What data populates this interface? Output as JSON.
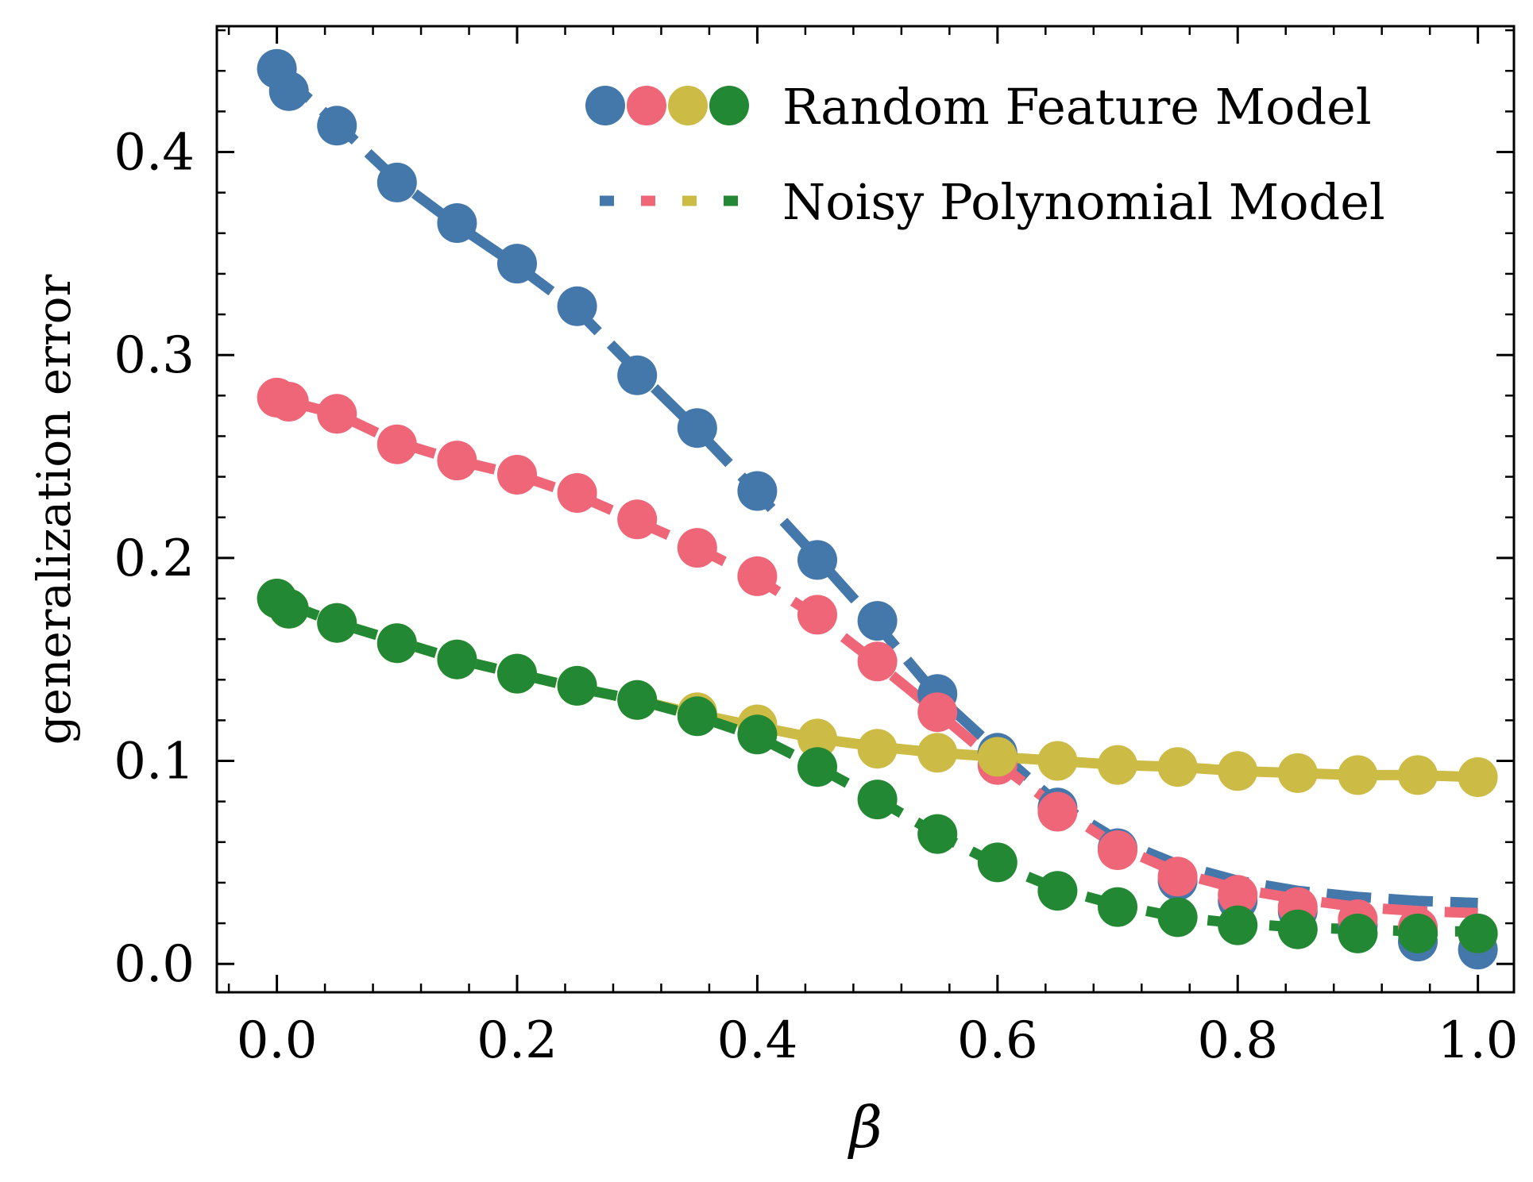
{
  "chart_data": {
    "type": "line",
    "title": "",
    "xlabel": "β",
    "ylabel": "generalization error",
    "xlim": [
      -0.05,
      1.03
    ],
    "ylim": [
      -0.014,
      0.462
    ],
    "xticks": [
      0.0,
      0.2,
      0.4,
      0.6,
      0.8,
      1.0
    ],
    "xtick_labels": [
      "0.0",
      "0.2",
      "0.4",
      "0.6",
      "0.8",
      "1.0"
    ],
    "yticks": [
      0.0,
      0.1,
      0.2,
      0.3,
      0.4
    ],
    "ytick_labels": [
      "0.0",
      "0.1",
      "0.2",
      "0.3",
      "0.4"
    ],
    "grid": false,
    "legend": {
      "placement": "top-right",
      "entries": [
        {
          "label": "Random Feature Model",
          "style": "markers",
          "colors": [
            "#4477AA",
            "#EE6677",
            "#CCBB44",
            "#228833"
          ]
        },
        {
          "label": "Noisy Polynomial Model",
          "style": "dashed",
          "colors": [
            "#4477AA",
            "#EE6677",
            "#CCBB44",
            "#228833"
          ]
        }
      ]
    },
    "x": [
      0.0,
      0.01,
      0.05,
      0.1,
      0.15,
      0.2,
      0.25,
      0.3,
      0.35,
      0.4,
      0.45,
      0.5,
      0.55,
      0.6,
      0.65,
      0.7,
      0.75,
      0.8,
      0.85,
      0.9,
      0.95,
      1.0
    ],
    "series": [
      {
        "name": "blue",
        "color": "#4477AA",
        "markers": [
          0.441,
          0.43,
          0.413,
          0.385,
          0.365,
          0.345,
          0.324,
          0.29,
          0.264,
          0.233,
          0.199,
          0.169,
          0.133,
          0.104,
          0.077,
          0.057,
          0.041,
          0.031,
          0.026,
          0.019,
          0.011,
          0.007
        ],
        "curve": [
          0.441,
          0.435,
          0.414,
          0.386,
          0.364,
          0.344,
          0.322,
          0.292,
          0.263,
          0.232,
          0.2,
          0.167,
          0.132,
          0.105,
          0.079,
          0.061,
          0.049,
          0.041,
          0.036,
          0.033,
          0.031,
          0.03
        ]
      },
      {
        "name": "red",
        "color": "#EE6677",
        "markers": [
          0.279,
          0.277,
          0.271,
          0.256,
          0.248,
          0.241,
          0.232,
          0.219,
          0.205,
          0.191,
          0.172,
          0.149,
          0.124,
          0.098,
          0.075,
          0.056,
          0.043,
          0.034,
          0.028,
          0.022,
          0.018,
          0.015
        ],
        "curve": [
          0.279,
          0.277,
          0.271,
          0.257,
          0.248,
          0.241,
          0.231,
          0.218,
          0.205,
          0.19,
          0.171,
          0.148,
          0.124,
          0.099,
          0.077,
          0.058,
          0.045,
          0.037,
          0.032,
          0.028,
          0.026,
          0.025
        ]
      },
      {
        "name": "yellow",
        "color": "#CCBB44",
        "markers": [
          0.18,
          0.175,
          0.168,
          0.158,
          0.15,
          0.143,
          0.137,
          0.13,
          0.124,
          0.118,
          0.111,
          0.106,
          0.104,
          0.102,
          0.1,
          0.098,
          0.097,
          0.095,
          0.094,
          0.093,
          0.093,
          0.092
        ],
        "curve": [
          0.18,
          0.177,
          0.168,
          0.159,
          0.15,
          0.143,
          0.136,
          0.13,
          0.123,
          0.117,
          0.111,
          0.107,
          0.104,
          0.102,
          0.1,
          0.098,
          0.097,
          0.095,
          0.094,
          0.093,
          0.093,
          0.092
        ]
      },
      {
        "name": "green",
        "color": "#228833",
        "markers": [
          0.18,
          0.175,
          0.168,
          0.158,
          0.15,
          0.143,
          0.137,
          0.13,
          0.122,
          0.113,
          0.097,
          0.081,
          0.064,
          0.05,
          0.036,
          0.028,
          0.023,
          0.019,
          0.017,
          0.015,
          0.015,
          0.015
        ],
        "curve": [
          0.18,
          0.177,
          0.168,
          0.159,
          0.15,
          0.143,
          0.136,
          0.13,
          0.122,
          0.112,
          0.097,
          0.081,
          0.064,
          0.049,
          0.037,
          0.029,
          0.023,
          0.02,
          0.018,
          0.017,
          0.016,
          0.016
        ]
      }
    ]
  }
}
